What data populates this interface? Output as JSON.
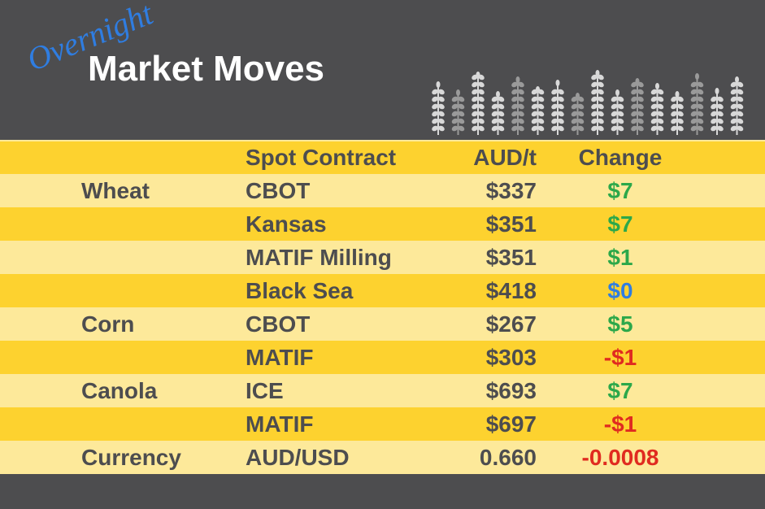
{
  "header": {
    "title_script": "Overnight",
    "title": "Market Moves"
  },
  "table": {
    "columns": [
      "Spot Contract",
      "AUD/t",
      "Change"
    ],
    "rows": [
      {
        "group": "Wheat",
        "contract": "CBOT",
        "price": "$337",
        "change": "$7"
      },
      {
        "contract": "Kansas",
        "price": "$351",
        "change": "$7"
      },
      {
        "contract": "MATIF Milling",
        "price": "$351",
        "change": "$1"
      },
      {
        "contract": "Black Sea",
        "price": "$418",
        "change": "$0"
      },
      {
        "group": "Corn",
        "contract": "CBOT",
        "price": "$267",
        "change": "$5"
      },
      {
        "contract": "MATIF",
        "price": "$303",
        "change": "-$1"
      },
      {
        "group": "Canola",
        "contract": "ICE",
        "price": "$693",
        "change": "$7"
      },
      {
        "contract": "MATIF",
        "price": "$697",
        "change": "-$1"
      },
      {
        "group": "Currency",
        "contract": "AUD/USD",
        "price": "0.660",
        "change": "-0.0008"
      }
    ]
  }
}
